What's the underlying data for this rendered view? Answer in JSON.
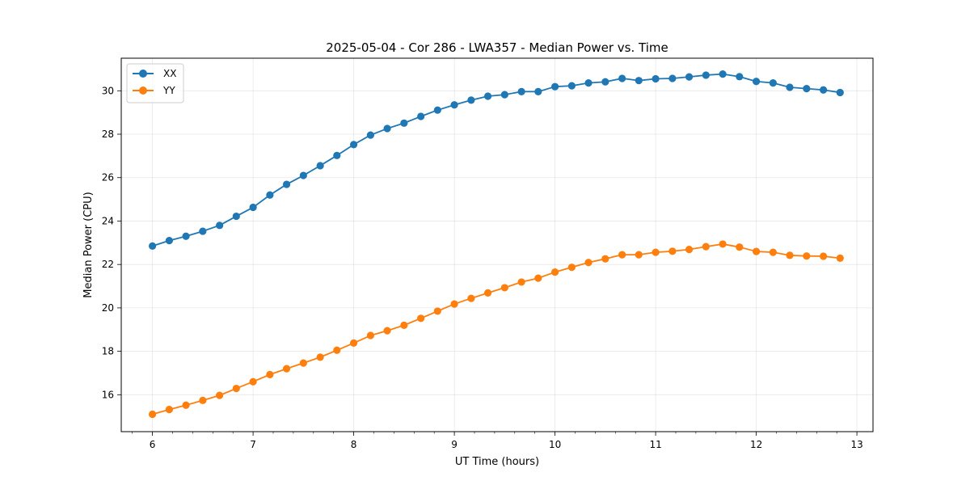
{
  "chart_data": {
    "type": "line",
    "title": "2025-05-04 - Cor 286 - LWA357 - Median Power vs. Time",
    "xlabel": "UT Time (hours)",
    "ylabel": "Median Power (CPU)",
    "xlim": [
      5.69,
      13.16
    ],
    "ylim": [
      14.3,
      31.5
    ],
    "xticks": [
      6,
      7,
      8,
      9,
      10,
      11,
      12,
      13
    ],
    "yticks": [
      16,
      18,
      20,
      22,
      24,
      26,
      28,
      30
    ],
    "grid": true,
    "legend_position": "top-left",
    "x": [
      6.0,
      6.167,
      6.333,
      6.5,
      6.667,
      6.833,
      7.0,
      7.167,
      7.333,
      7.5,
      7.667,
      7.833,
      8.0,
      8.167,
      8.333,
      8.5,
      8.667,
      8.833,
      9.0,
      9.167,
      9.333,
      9.5,
      9.667,
      9.833,
      10.0,
      10.167,
      10.333,
      10.5,
      10.667,
      10.833,
      11.0,
      11.167,
      11.333,
      11.5,
      11.667,
      11.833,
      12.0,
      12.167,
      12.333,
      12.5,
      12.667,
      12.833
    ],
    "series": [
      {
        "name": "XX",
        "color": "#1f77b4",
        "values": [
          22.85,
          23.1,
          23.3,
          23.53,
          23.8,
          24.22,
          24.63,
          25.2,
          25.69,
          26.1,
          26.55,
          27.02,
          27.52,
          27.96,
          28.26,
          28.51,
          28.82,
          29.11,
          29.35,
          29.57,
          29.75,
          29.82,
          29.96,
          29.96,
          30.19,
          30.23,
          30.36,
          30.41,
          30.57,
          30.47,
          30.55,
          30.57,
          30.64,
          30.72,
          30.77,
          30.65,
          30.43,
          30.36,
          30.16,
          30.1,
          30.04,
          29.92
        ]
      },
      {
        "name": "YY",
        "color": "#ff7f0e",
        "values": [
          15.1,
          15.32,
          15.52,
          15.74,
          15.97,
          16.29,
          16.6,
          16.93,
          17.2,
          17.46,
          17.73,
          18.05,
          18.38,
          18.73,
          18.95,
          19.2,
          19.52,
          19.85,
          20.18,
          20.44,
          20.69,
          20.93,
          21.19,
          21.37,
          21.65,
          21.87,
          22.09,
          22.26,
          22.45,
          22.45,
          22.56,
          22.61,
          22.69,
          22.82,
          22.94,
          22.8,
          22.6,
          22.56,
          22.42,
          22.39,
          22.38,
          22.29
        ]
      }
    ]
  }
}
